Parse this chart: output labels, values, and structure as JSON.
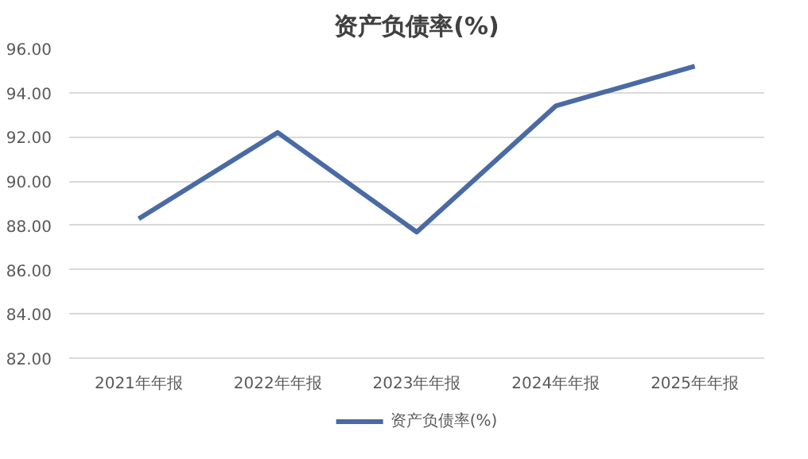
{
  "chart_data": {
    "type": "line",
    "title": "资产负债率(%)",
    "categories": [
      "2021年年报",
      "2022年年报",
      "2023年年报",
      "2024年年报",
      "2025年年报"
    ],
    "series": [
      {
        "name": "资产负债率(%)",
        "color": "#4a6aa5",
        "values": [
          88.3,
          92.2,
          87.7,
          93.4,
          95.2
        ]
      }
    ],
    "ylim": [
      82,
      96
    ],
    "yticks": [
      {
        "value": 82,
        "label": "82.00"
      },
      {
        "value": 84,
        "label": "84.00"
      },
      {
        "value": 86,
        "label": "86.00"
      },
      {
        "value": 88,
        "label": "88.00"
      },
      {
        "value": 90,
        "label": "90.00"
      },
      {
        "value": 92,
        "label": "92.00"
      },
      {
        "value": 94,
        "label": "94.00"
      },
      {
        "value": 96,
        "label": "96.00"
      }
    ],
    "grid": "y",
    "legend": "bottom",
    "marker": "none",
    "line_style": "solid"
  }
}
